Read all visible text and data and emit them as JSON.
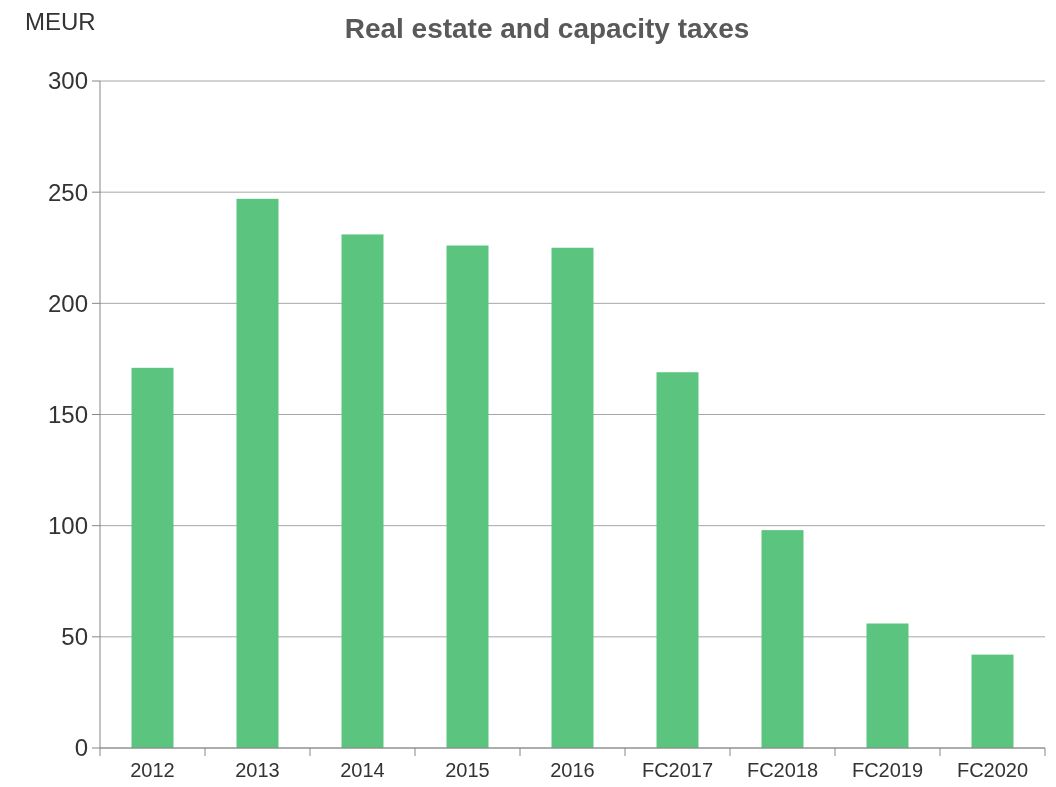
{
  "chart_data": {
    "type": "bar",
    "title": "Real estate and capacity taxes",
    "ylabel": "MEUR",
    "categories": [
      "2012",
      "2013",
      "2014",
      "2015",
      "2016",
      "FC2017",
      "FC2018",
      "FC2019",
      "FC2020"
    ],
    "values": [
      171,
      247,
      231,
      226,
      225,
      169,
      98,
      56,
      42
    ],
    "color": "#5bc57f",
    "ylim": [
      0,
      300
    ],
    "yticks": [
      0,
      50,
      100,
      150,
      200,
      250,
      300
    ],
    "grid": "y"
  }
}
